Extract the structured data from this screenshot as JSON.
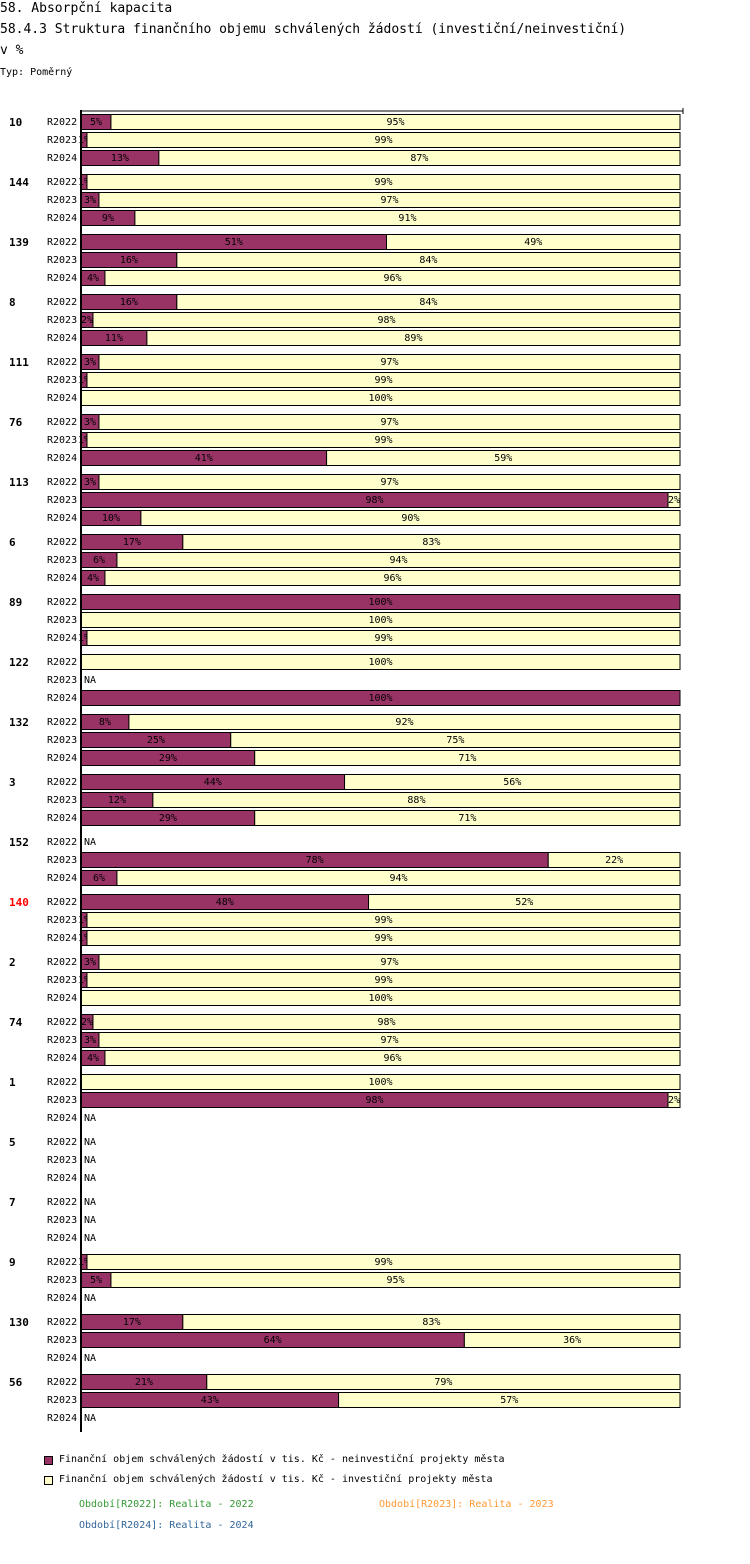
{
  "header": {
    "title": "58. Absorpční kapacita",
    "subtitle": "58.4.3 Struktura finančního objemu schválených žádostí (investiční/neinvestiční)",
    "unit": "v %",
    "typ": "Typ: Poměrný"
  },
  "colors": {
    "neinvesticni": "#993366",
    "investicni": "#ffffcc",
    "highlight_group": "#ff0000",
    "period_2022": "#339933",
    "period_2023": "#ff9933",
    "period_2024": "#336699"
  },
  "chart_data": {
    "type": "bar",
    "orientation": "horizontal",
    "stacked": true,
    "normalized": "percent",
    "title": "58.4.3 Struktura finančního objemu schválených žádostí (investiční/neinvestiční)",
    "ylabel": "v %",
    "xlim": [
      0,
      100
    ],
    "highlight_group": "140",
    "na_label": "NA",
    "series": [
      {
        "name": "Finanční objem schválených žádostí v tis. Kč - neinvestiční projekty města",
        "color": "#993366"
      },
      {
        "name": "Finanční objem schválených žádostí v tis. Kč - investiční projekty města",
        "color": "#ffffcc"
      }
    ],
    "groups": [
      {
        "label": "10",
        "rows": [
          {
            "period": "R2022",
            "values": [
              5,
              95
            ]
          },
          {
            "period": "R2023",
            "values": [
              1,
              99
            ]
          },
          {
            "period": "R2024",
            "values": [
              13,
              87
            ]
          }
        ]
      },
      {
        "label": "144",
        "rows": [
          {
            "period": "R2022",
            "values": [
              1,
              99
            ]
          },
          {
            "period": "R2023",
            "values": [
              3,
              97
            ]
          },
          {
            "period": "R2024",
            "values": [
              9,
              91
            ]
          }
        ]
      },
      {
        "label": "139",
        "rows": [
          {
            "period": "R2022",
            "values": [
              51,
              49
            ]
          },
          {
            "period": "R2023",
            "values": [
              16,
              84
            ]
          },
          {
            "period": "R2024",
            "values": [
              4,
              96
            ]
          }
        ]
      },
      {
        "label": "8",
        "rows": [
          {
            "period": "R2022",
            "values": [
              16,
              84
            ]
          },
          {
            "period": "R2023",
            "values": [
              2,
              98
            ]
          },
          {
            "period": "R2024",
            "values": [
              11,
              89
            ]
          }
        ]
      },
      {
        "label": "111",
        "rows": [
          {
            "period": "R2022",
            "values": [
              3,
              97
            ]
          },
          {
            "period": "R2023",
            "values": [
              1,
              99
            ]
          },
          {
            "period": "R2024",
            "values": [
              0,
              100
            ]
          }
        ]
      },
      {
        "label": "76",
        "rows": [
          {
            "period": "R2022",
            "values": [
              3,
              97
            ]
          },
          {
            "period": "R2023",
            "values": [
              1,
              99
            ]
          },
          {
            "period": "R2024",
            "values": [
              41,
              59
            ]
          }
        ]
      },
      {
        "label": "113",
        "rows": [
          {
            "period": "R2022",
            "values": [
              3,
              97
            ]
          },
          {
            "period": "R2023",
            "values": [
              98,
              2
            ]
          },
          {
            "period": "R2024",
            "values": [
              10,
              90
            ]
          }
        ]
      },
      {
        "label": "6",
        "rows": [
          {
            "period": "R2022",
            "values": [
              17,
              83
            ]
          },
          {
            "period": "R2023",
            "values": [
              6,
              94
            ]
          },
          {
            "period": "R2024",
            "values": [
              4,
              96
            ]
          }
        ]
      },
      {
        "label": "89",
        "rows": [
          {
            "period": "R2022",
            "values": [
              100,
              0
            ]
          },
          {
            "period": "R2023",
            "values": [
              0,
              100
            ]
          },
          {
            "period": "R2024",
            "values": [
              1,
              99
            ]
          }
        ]
      },
      {
        "label": "122",
        "rows": [
          {
            "period": "R2022",
            "values": [
              0,
              100
            ]
          },
          {
            "period": "R2023",
            "values": null
          },
          {
            "period": "R2024",
            "values": [
              100,
              0
            ]
          }
        ]
      },
      {
        "label": "132",
        "rows": [
          {
            "period": "R2022",
            "values": [
              8,
              92
            ]
          },
          {
            "period": "R2023",
            "values": [
              25,
              75
            ]
          },
          {
            "period": "R2024",
            "values": [
              29,
              71
            ]
          }
        ]
      },
      {
        "label": "3",
        "rows": [
          {
            "period": "R2022",
            "values": [
              44,
              56
            ]
          },
          {
            "period": "R2023",
            "values": [
              12,
              88
            ]
          },
          {
            "period": "R2024",
            "values": [
              29,
              71
            ]
          }
        ]
      },
      {
        "label": "152",
        "rows": [
          {
            "period": "R2022",
            "values": null
          },
          {
            "period": "R2023",
            "values": [
              78,
              22
            ]
          },
          {
            "period": "R2024",
            "values": [
              6,
              94
            ]
          }
        ]
      },
      {
        "label": "140",
        "rows": [
          {
            "period": "R2022",
            "values": [
              48,
              52
            ]
          },
          {
            "period": "R2023",
            "values": [
              1,
              99
            ]
          },
          {
            "period": "R2024",
            "values": [
              1,
              99
            ]
          }
        ]
      },
      {
        "label": "2",
        "rows": [
          {
            "period": "R2022",
            "values": [
              3,
              97
            ]
          },
          {
            "period": "R2023",
            "values": [
              1,
              99
            ]
          },
          {
            "period": "R2024",
            "values": [
              0,
              100
            ]
          }
        ]
      },
      {
        "label": "74",
        "rows": [
          {
            "period": "R2022",
            "values": [
              2,
              98
            ]
          },
          {
            "period": "R2023",
            "values": [
              3,
              97
            ]
          },
          {
            "period": "R2024",
            "values": [
              4,
              96
            ]
          }
        ]
      },
      {
        "label": "1",
        "rows": [
          {
            "period": "R2022",
            "values": [
              0,
              100
            ]
          },
          {
            "period": "R2023",
            "values": [
              98,
              2
            ]
          },
          {
            "period": "R2024",
            "values": null
          }
        ]
      },
      {
        "label": "5",
        "rows": [
          {
            "period": "R2022",
            "values": null
          },
          {
            "period": "R2023",
            "values": null
          },
          {
            "period": "R2024",
            "values": null
          }
        ]
      },
      {
        "label": "7",
        "rows": [
          {
            "period": "R2022",
            "values": null
          },
          {
            "period": "R2023",
            "values": null
          },
          {
            "period": "R2024",
            "values": null
          }
        ]
      },
      {
        "label": "9",
        "rows": [
          {
            "period": "R2022",
            "values": [
              1,
              99
            ]
          },
          {
            "period": "R2023",
            "values": [
              5,
              95
            ]
          },
          {
            "period": "R2024",
            "values": null
          }
        ]
      },
      {
        "label": "130",
        "rows": [
          {
            "period": "R2022",
            "values": [
              17,
              83
            ]
          },
          {
            "period": "R2023",
            "values": [
              64,
              36
            ]
          },
          {
            "period": "R2024",
            "values": null
          }
        ]
      },
      {
        "label": "56",
        "rows": [
          {
            "period": "R2022",
            "values": [
              21,
              79
            ]
          },
          {
            "period": "R2023",
            "values": [
              43,
              57
            ]
          },
          {
            "period": "R2024",
            "values": null
          }
        ]
      }
    ],
    "periods": [
      {
        "key": "R2022",
        "text": "Období[R2022]: Realita - 2022",
        "color": "#339933"
      },
      {
        "key": "R2023",
        "text": "Období[R2023]: Realita - 2023",
        "color": "#ff9933"
      },
      {
        "key": "R2024",
        "text": "Období[R2024]: Realita - 2024",
        "color": "#336699"
      }
    ]
  }
}
